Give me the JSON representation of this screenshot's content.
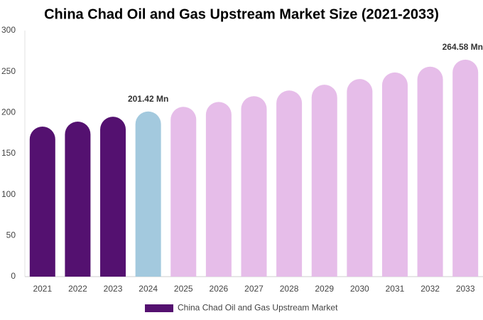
{
  "chart_data": {
    "type": "bar",
    "title": "China Chad Oil and Gas Upstream Market Size (2021-2033)",
    "categories": [
      "2021",
      "2022",
      "2023",
      "2024",
      "2025",
      "2026",
      "2027",
      "2028",
      "2029",
      "2030",
      "2031",
      "2032",
      "2033"
    ],
    "series": [
      {
        "name": "China Chad Oil and Gas Upstream Market",
        "color": "#541170",
        "colors": [
          "#541170",
          "#541170",
          "#541170",
          "#a3c9de",
          "#e6bde9",
          "#e6bde9",
          "#e6bde9",
          "#e6bde9",
          "#e6bde9",
          "#e6bde9",
          "#e6bde9",
          "#e6bde9",
          "#e6bde9"
        ],
        "values": [
          183,
          189,
          195,
          201.42,
          207,
          213,
          220,
          227,
          234,
          241,
          249,
          256,
          264.58
        ],
        "value_labels": [
          null,
          null,
          null,
          "201.42 Mn",
          null,
          null,
          null,
          null,
          null,
          null,
          null,
          null,
          "264.58 Mn"
        ]
      }
    ],
    "ylim": [
      0,
      300
    ],
    "yticks": [
      0,
      50,
      100,
      150,
      200,
      250,
      300
    ],
    "grid": false
  }
}
